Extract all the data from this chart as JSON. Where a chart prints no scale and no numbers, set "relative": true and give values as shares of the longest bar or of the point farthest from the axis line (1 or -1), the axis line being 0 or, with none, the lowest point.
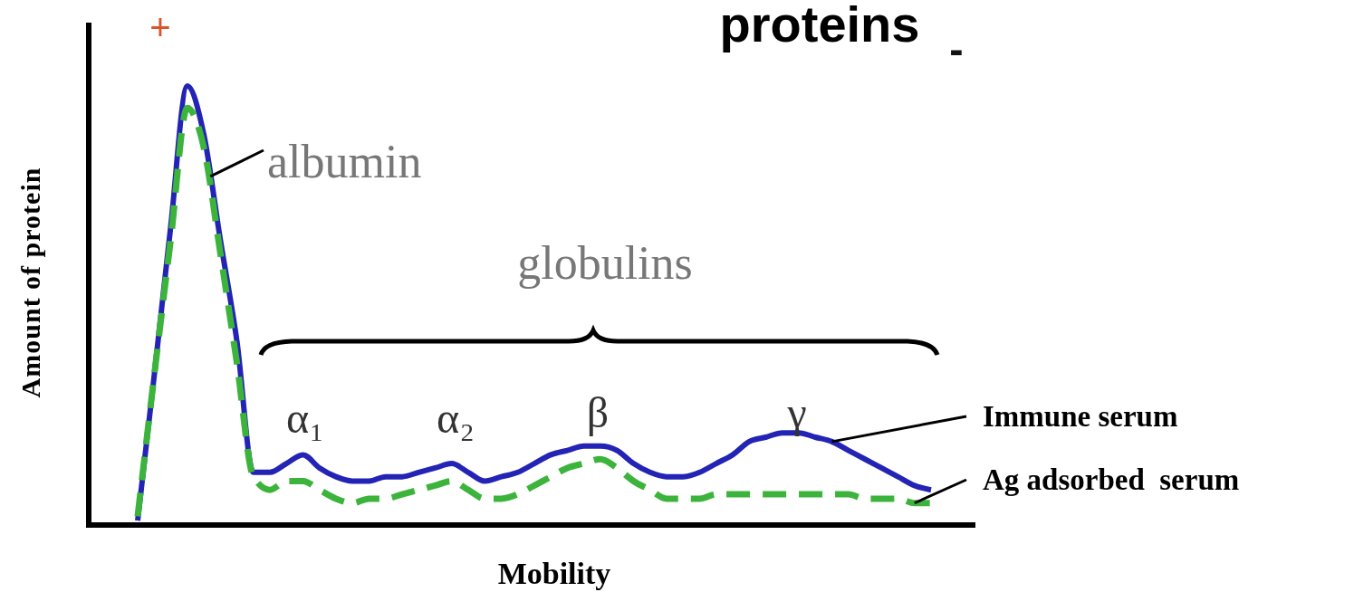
{
  "chart_data": {
    "type": "line",
    "title": "proteins",
    "xlabel": "Mobility",
    "ylabel": "Amount of protein",
    "relative": true,
    "categories": [
      null,
      null,
      null,
      null,
      null,
      null,
      null,
      null,
      null,
      null,
      null,
      null,
      null,
      null,
      null,
      null,
      null,
      null,
      null,
      null,
      null,
      null,
      null,
      null,
      null,
      null,
      null,
      null,
      null,
      null,
      null,
      null,
      null,
      null,
      null,
      null,
      null,
      null,
      null,
      null,
      null,
      null,
      null,
      null,
      null,
      null,
      null,
      null,
      null
    ],
    "series": [
      {
        "name": "Immune serum",
        "color": "#2323b5",
        "line_style": "solid",
        "values": [
          0.01,
          0.34,
          0.68,
          1,
          0.89,
          0.65,
          0.42,
          0.12,
          0.12,
          0.14,
          0.16,
          0.13,
          0.11,
          0.1,
          0.1,
          0.11,
          0.11,
          0.12,
          0.13,
          0.14,
          0.12,
          0.1,
          0.11,
          0.12,
          0.14,
          0.16,
          0.17,
          0.18,
          0.18,
          0.17,
          0.14,
          0.12,
          0.11,
          0.11,
          0.12,
          0.14,
          0.16,
          0.19,
          0.2,
          0.21,
          0.21,
          0.2,
          0.19,
          0.17,
          0.15,
          0.13,
          0.11,
          0.09,
          0.08
        ]
      },
      {
        "name": "Ag adsorbed  serum",
        "color": "#3cb43c",
        "line_style": "dashed",
        "values": [
          0.02,
          0.34,
          0.65,
          0.95,
          0.86,
          0.62,
          0.37,
          0.11,
          0.08,
          0.1,
          0.1,
          0.08,
          0.06,
          0.05,
          0.06,
          0.06,
          0.07,
          0.08,
          0.09,
          0.1,
          0.08,
          0.06,
          0.06,
          0.07,
          0.09,
          0.11,
          0.13,
          0.14,
          0.15,
          0.13,
          0.1,
          0.08,
          0.06,
          0.06,
          0.06,
          0.07,
          0.07,
          0.07,
          0.07,
          0.07,
          0.07,
          0.07,
          0.07,
          0.07,
          0.06,
          0.06,
          0.06,
          0.05,
          0.05
        ]
      }
    ],
    "annotations": [
      "+",
      "-",
      "albumin",
      "globulins",
      "α₁",
      "α₂",
      "β",
      "γ"
    ]
  }
}
